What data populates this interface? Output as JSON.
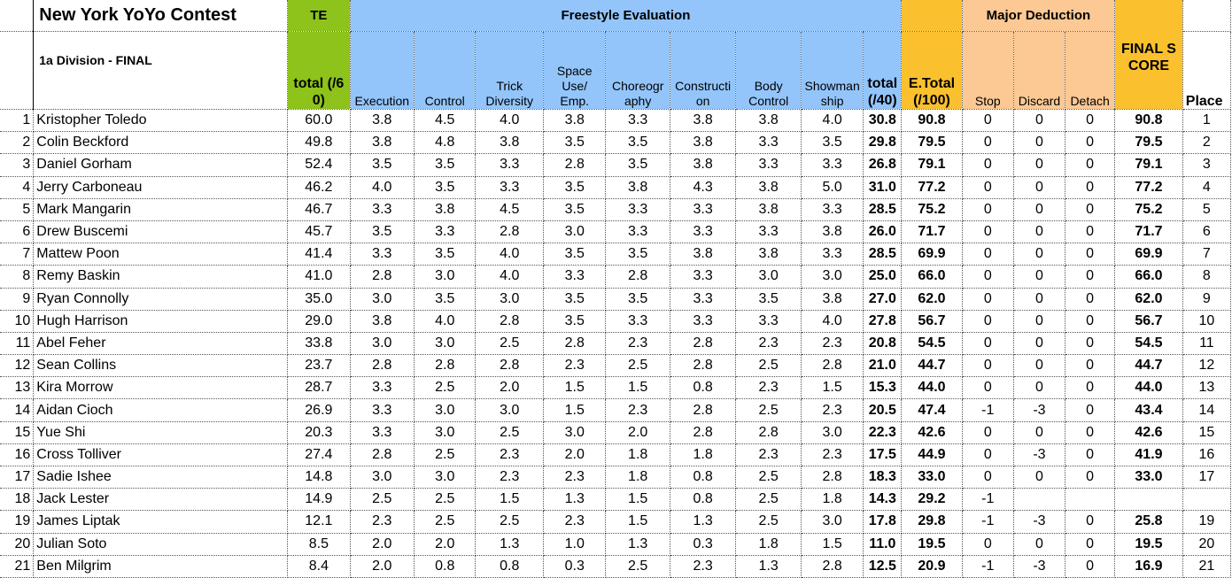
{
  "title": "New York YoYo Contest",
  "division": "1a Division - FINAL",
  "group_headers": {
    "te": "TE",
    "freestyle": "Freestyle Evaluation",
    "major": "Major Deduction",
    "final": "FINAL SCORE"
  },
  "col_headers": {
    "te_total": "total (/60)",
    "execution": "Execution",
    "control": "Control",
    "trick_diversity": "Trick Diversity",
    "space_use": "Space Use/ Emp.",
    "choreography": "Choreography",
    "construction": "Construction",
    "body_control": "Body Control",
    "showmanship": "Showmanship",
    "fe_total": "total (/40)",
    "e_total": "E.Total (/100)",
    "stop": "Stop",
    "discard": "Discard",
    "detach": "Detach",
    "place": "Place"
  },
  "rows": [
    {
      "n": "1",
      "name": "Kristopher Toledo",
      "te": "60.0",
      "s": [
        "3.8",
        "4.5",
        "4.0",
        "3.8",
        "3.3",
        "3.8",
        "3.8",
        "4.0"
      ],
      "tot": "30.8",
      "et": "90.8",
      "stop": "0",
      "disc": "0",
      "det": "0",
      "final": "90.8",
      "place": "1"
    },
    {
      "n": "2",
      "name": "Colin Beckford",
      "te": "49.8",
      "s": [
        "3.8",
        "4.8",
        "3.8",
        "3.5",
        "3.5",
        "3.8",
        "3.3",
        "3.5"
      ],
      "tot": "29.8",
      "et": "79.5",
      "stop": "0",
      "disc": "0",
      "det": "0",
      "final": "79.5",
      "place": "2"
    },
    {
      "n": "3",
      "name": "Daniel Gorham",
      "te": "52.4",
      "s": [
        "3.5",
        "3.5",
        "3.3",
        "2.8",
        "3.5",
        "3.8",
        "3.3",
        "3.3"
      ],
      "tot": "26.8",
      "et": "79.1",
      "stop": "0",
      "disc": "0",
      "det": "0",
      "final": "79.1",
      "place": "3"
    },
    {
      "n": "4",
      "name": "Jerry Carboneau",
      "te": "46.2",
      "s": [
        "4.0",
        "3.5",
        "3.3",
        "3.5",
        "3.8",
        "4.3",
        "3.8",
        "5.0"
      ],
      "tot": "31.0",
      "et": "77.2",
      "stop": "0",
      "disc": "0",
      "det": "0",
      "final": "77.2",
      "place": "4"
    },
    {
      "n": "5",
      "name": "Mark Mangarin",
      "te": "46.7",
      "s": [
        "3.3",
        "3.8",
        "4.5",
        "3.5",
        "3.3",
        "3.3",
        "3.8",
        "3.3"
      ],
      "tot": "28.5",
      "et": "75.2",
      "stop": "0",
      "disc": "0",
      "det": "0",
      "final": "75.2",
      "place": "5"
    },
    {
      "n": "6",
      "name": "Drew Buscemi",
      "te": "45.7",
      "s": [
        "3.5",
        "3.3",
        "2.8",
        "3.0",
        "3.3",
        "3.3",
        "3.3",
        "3.8"
      ],
      "tot": "26.0",
      "et": "71.7",
      "stop": "0",
      "disc": "0",
      "det": "0",
      "final": "71.7",
      "place": "6"
    },
    {
      "n": "7",
      "name": "Mattew Poon",
      "te": "41.4",
      "s": [
        "3.3",
        "3.5",
        "4.0",
        "3.5",
        "3.5",
        "3.8",
        "3.8",
        "3.3"
      ],
      "tot": "28.5",
      "et": "69.9",
      "stop": "0",
      "disc": "0",
      "det": "0",
      "final": "69.9",
      "place": "7"
    },
    {
      "n": "8",
      "name": "Remy Baskin",
      "te": "41.0",
      "s": [
        "2.8",
        "3.0",
        "4.0",
        "3.3",
        "2.8",
        "3.3",
        "3.0",
        "3.0"
      ],
      "tot": "25.0",
      "et": "66.0",
      "stop": "0",
      "disc": "0",
      "det": "0",
      "final": "66.0",
      "place": "8"
    },
    {
      "n": "9",
      "name": "Ryan Connolly",
      "te": "35.0",
      "s": [
        "3.0",
        "3.5",
        "3.0",
        "3.5",
        "3.5",
        "3.3",
        "3.5",
        "3.8"
      ],
      "tot": "27.0",
      "et": "62.0",
      "stop": "0",
      "disc": "0",
      "det": "0",
      "final": "62.0",
      "place": "9"
    },
    {
      "n": "10",
      "name": "Hugh Harrison",
      "te": "29.0",
      "s": [
        "3.8",
        "4.0",
        "2.8",
        "3.5",
        "3.3",
        "3.3",
        "3.3",
        "4.0"
      ],
      "tot": "27.8",
      "et": "56.7",
      "stop": "0",
      "disc": "0",
      "det": "0",
      "final": "56.7",
      "place": "10"
    },
    {
      "n": "11",
      "name": "Abel Feher",
      "te": "33.8",
      "s": [
        "3.0",
        "3.0",
        "2.5",
        "2.8",
        "2.3",
        "2.8",
        "2.3",
        "2.3"
      ],
      "tot": "20.8",
      "et": "54.5",
      "stop": "0",
      "disc": "0",
      "det": "0",
      "final": "54.5",
      "place": "11"
    },
    {
      "n": "12",
      "name": "Sean Collins",
      "te": "23.7",
      "s": [
        "2.8",
        "2.8",
        "2.8",
        "2.3",
        "2.5",
        "2.8",
        "2.5",
        "2.8"
      ],
      "tot": "21.0",
      "et": "44.7",
      "stop": "0",
      "disc": "0",
      "det": "0",
      "final": "44.7",
      "place": "12"
    },
    {
      "n": "13",
      "name": "Kira Morrow",
      "te": "28.7",
      "s": [
        "3.3",
        "2.5",
        "2.0",
        "1.5",
        "1.5",
        "0.8",
        "2.3",
        "1.5"
      ],
      "tot": "15.3",
      "et": "44.0",
      "stop": "0",
      "disc": "0",
      "det": "0",
      "final": "44.0",
      "place": "13"
    },
    {
      "n": "14",
      "name": "Aidan Cioch",
      "te": "26.9",
      "s": [
        "3.3",
        "3.0",
        "3.0",
        "1.5",
        "2.3",
        "2.8",
        "2.5",
        "2.3"
      ],
      "tot": "20.5",
      "et": "47.4",
      "stop": "-1",
      "disc": "-3",
      "det": "0",
      "final": "43.4",
      "place": "14"
    },
    {
      "n": "15",
      "name": "Yue Shi",
      "te": "20.3",
      "s": [
        "3.3",
        "3.0",
        "2.5",
        "3.0",
        "2.0",
        "2.8",
        "2.8",
        "3.0"
      ],
      "tot": "22.3",
      "et": "42.6",
      "stop": "0",
      "disc": "0",
      "det": "0",
      "final": "42.6",
      "place": "15"
    },
    {
      "n": "16",
      "name": "Cross Tolliver",
      "te": "27.4",
      "s": [
        "2.8",
        "2.5",
        "2.3",
        "2.0",
        "1.8",
        "1.8",
        "2.3",
        "2.3"
      ],
      "tot": "17.5",
      "et": "44.9",
      "stop": "0",
      "disc": "-3",
      "det": "0",
      "final": "41.9",
      "place": "16"
    },
    {
      "n": "17",
      "name": "Sadie Ishee",
      "te": "14.8",
      "s": [
        "3.0",
        "3.0",
        "2.3",
        "2.3",
        "1.8",
        "0.8",
        "2.5",
        "2.8"
      ],
      "tot": "18.3",
      "et": "33.0",
      "stop": "0",
      "disc": "0",
      "det": "0",
      "final": "33.0",
      "place": "17"
    },
    {
      "n": "18",
      "name": "Jack Lester",
      "te": "14.9",
      "s": [
        "2.5",
        "2.5",
        "1.5",
        "1.3",
        "1.5",
        "0.8",
        "2.5",
        "1.8"
      ],
      "tot": "14.3",
      "et": "29.2",
      "stop": "-1",
      "disc": "",
      "det": "",
      "final": "",
      "place": ""
    },
    {
      "n": "19",
      "name": "James Liptak",
      "te": "12.1",
      "s": [
        "2.3",
        "2.5",
        "2.5",
        "2.3",
        "1.5",
        "1.3",
        "2.5",
        "3.0"
      ],
      "tot": "17.8",
      "et": "29.8",
      "stop": "-1",
      "disc": "-3",
      "det": "0",
      "final": "25.8",
      "place": "19"
    },
    {
      "n": "20",
      "name": "Julian Soto",
      "te": "8.5",
      "s": [
        "2.0",
        "2.0",
        "1.3",
        "1.0",
        "1.3",
        "0.3",
        "1.8",
        "1.5"
      ],
      "tot": "11.0",
      "et": "19.5",
      "stop": "0",
      "disc": "0",
      "det": "0",
      "final": "19.5",
      "place": "20"
    },
    {
      "n": "21",
      "name": "Ben Milgrim",
      "te": "8.4",
      "s": [
        "2.0",
        "0.8",
        "0.8",
        "0.3",
        "2.5",
        "2.3",
        "1.3",
        "2.8"
      ],
      "tot": "12.5",
      "et": "20.9",
      "stop": "-1",
      "disc": "-3",
      "det": "0",
      "final": "16.9",
      "place": "21"
    }
  ]
}
